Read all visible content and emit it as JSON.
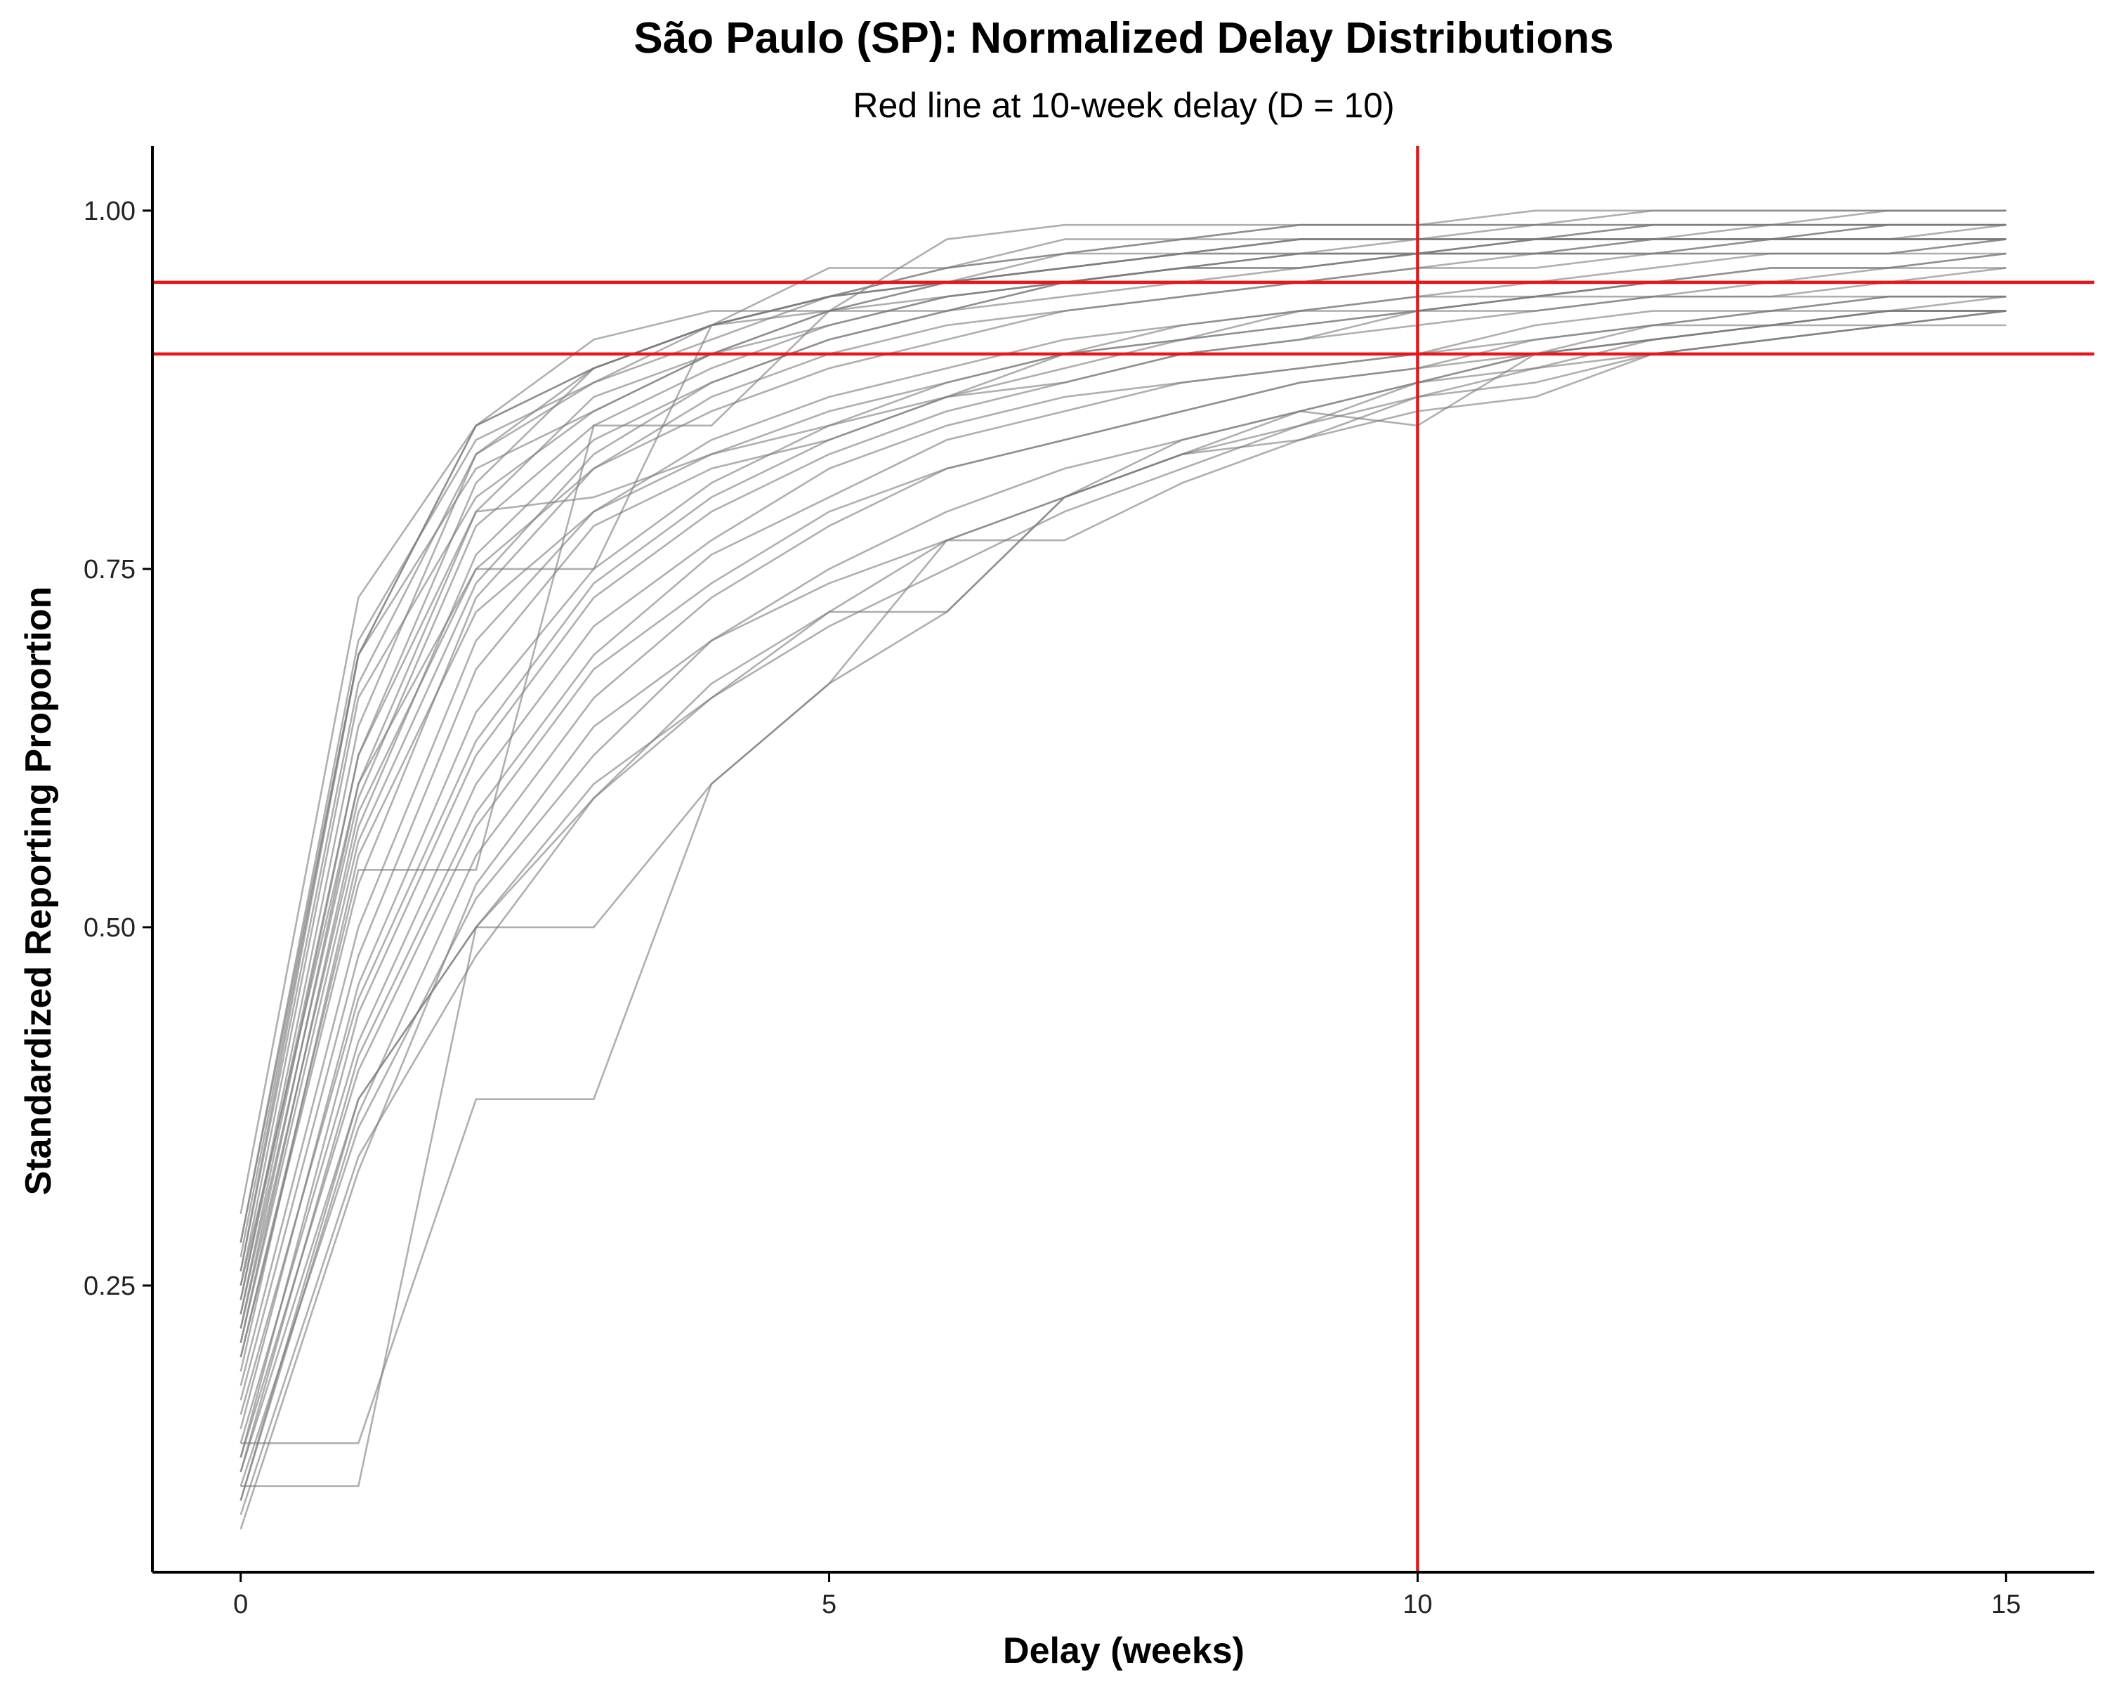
{
  "chart_data": {
    "type": "line",
    "title": "São Paulo (SP): Normalized Delay Distributions",
    "subtitle": "Red line at 10-week delay (D = 10)",
    "xlabel": "Delay (weeks)",
    "ylabel": "Standardized Reporting Proportion",
    "xlim": [
      -0.75,
      15.75
    ],
    "ylim": [
      0.05,
      1.045
    ],
    "x_ticks": [
      0,
      5,
      10,
      15
    ],
    "x_tick_labels": [
      "0",
      "5",
      "10",
      "15"
    ],
    "y_ticks": [
      0.25,
      0.5,
      0.75,
      1.0
    ],
    "y_tick_labels": [
      "0.25",
      "0.50",
      "0.75",
      "1.00"
    ],
    "grid": false,
    "legend": "none",
    "colors": {
      "series": "#7a7a7a",
      "reference": "#e8161b",
      "axis": "#000000"
    },
    "reference_lines": [
      {
        "axis": "x",
        "value": 10
      },
      {
        "axis": "y",
        "value": 0.95
      },
      {
        "axis": "y",
        "value": 0.9
      }
    ],
    "x": [
      0,
      1,
      2,
      3,
      4,
      5,
      6,
      7,
      8,
      9,
      10,
      11,
      12,
      13,
      14,
      15
    ],
    "series": [
      {
        "values": [
          0.27,
          0.69,
          0.85,
          0.89,
          0.92,
          0.94,
          0.96,
          0.97,
          0.98,
          0.98,
          0.98,
          0.98,
          0.99,
          0.99,
          0.99,
          0.99
        ]
      },
      {
        "values": [
          0.28,
          0.7,
          0.84,
          0.88,
          0.91,
          0.94,
          0.95,
          0.96,
          0.97,
          0.97,
          0.98,
          0.98,
          0.98,
          0.98,
          0.98,
          0.98
        ]
      },
      {
        "values": [
          0.26,
          0.69,
          0.82,
          0.86,
          0.9,
          0.93,
          0.95,
          0.96,
          0.97,
          0.97,
          0.97,
          0.97,
          0.97,
          0.97,
          0.97,
          0.97
        ]
      },
      {
        "values": [
          0.3,
          0.73,
          0.85,
          0.89,
          0.92,
          0.94,
          0.95,
          0.96,
          0.97,
          0.98,
          0.98,
          0.99,
          1.0,
          1.0,
          1.0,
          1.0
        ]
      },
      {
        "values": [
          0.25,
          0.66,
          0.8,
          0.86,
          0.9,
          0.92,
          0.94,
          0.95,
          0.96,
          0.96,
          0.97,
          0.97,
          0.97,
          0.98,
          0.98,
          0.98
        ]
      },
      {
        "values": [
          0.23,
          0.62,
          0.79,
          0.87,
          0.9,
          0.93,
          0.95,
          0.97,
          0.98,
          0.99,
          0.99,
          0.99,
          0.99,
          0.99,
          0.99,
          0.99
        ]
      },
      {
        "values": [
          0.24,
          0.64,
          0.83,
          0.88,
          0.92,
          0.96,
          0.96,
          0.98,
          0.98,
          0.99,
          0.99,
          1.0,
          1.0,
          1.0,
          1.0,
          1.0
        ]
      },
      {
        "values": [
          0.22,
          0.6,
          0.75,
          0.75,
          0.92,
          0.93,
          0.93,
          0.95,
          0.96,
          0.97,
          0.97,
          0.98,
          0.98,
          0.98,
          0.98,
          0.98
        ]
      },
      {
        "values": [
          0.2,
          0.54,
          0.54,
          0.85,
          0.85,
          0.93,
          0.98,
          0.99,
          0.99,
          0.99,
          0.99,
          0.99,
          0.99,
          0.99,
          0.99,
          0.99
        ]
      },
      {
        "values": [
          0.28,
          0.69,
          0.85,
          0.91,
          0.93,
          0.93,
          0.94,
          0.95,
          0.96,
          0.97,
          0.97,
          0.98,
          0.98,
          0.98,
          0.98,
          0.98
        ]
      },
      {
        "values": [
          0.24,
          0.62,
          0.81,
          0.89,
          0.92,
          0.94,
          0.95,
          0.96,
          0.97,
          0.98,
          0.98,
          0.98,
          0.98,
          0.99,
          0.99,
          0.99
        ]
      },
      {
        "values": [
          0.21,
          0.58,
          0.75,
          0.82,
          0.86,
          0.89,
          0.91,
          0.93,
          0.94,
          0.95,
          0.96,
          0.97,
          0.97,
          0.98,
          0.98,
          0.99
        ]
      },
      {
        "values": [
          0.19,
          0.55,
          0.72,
          0.79,
          0.83,
          0.86,
          0.88,
          0.9,
          0.91,
          0.92,
          0.93,
          0.93,
          0.94,
          0.95,
          0.95,
          0.96
        ]
      },
      {
        "values": [
          0.25,
          0.6,
          0.79,
          0.8,
          0.83,
          0.85,
          0.87,
          0.89,
          0.91,
          0.93,
          0.94,
          0.95,
          0.96,
          0.97,
          0.97,
          0.98
        ]
      },
      {
        "values": [
          0.17,
          0.48,
          0.68,
          0.78,
          0.82,
          0.84,
          0.87,
          0.88,
          0.9,
          0.91,
          0.93,
          0.94,
          0.95,
          0.96,
          0.96,
          0.97
        ]
      },
      {
        "values": [
          0.16,
          0.45,
          0.63,
          0.74,
          0.8,
          0.84,
          0.87,
          0.9,
          0.92,
          0.93,
          0.93,
          0.94,
          0.94,
          0.94,
          0.94,
          0.94
        ]
      },
      {
        "values": [
          0.14,
          0.42,
          0.6,
          0.71,
          0.77,
          0.82,
          0.85,
          0.87,
          0.88,
          0.89,
          0.9,
          0.91,
          0.92,
          0.93,
          0.94,
          0.94
        ]
      },
      {
        "values": [
          0.13,
          0.4,
          0.57,
          0.68,
          0.74,
          0.79,
          0.82,
          0.84,
          0.86,
          0.88,
          0.89,
          0.9,
          0.91,
          0.92,
          0.93,
          0.93
        ]
      },
      {
        "values": [
          0.1,
          0.38,
          0.5,
          0.59,
          0.66,
          0.72,
          0.77,
          0.8,
          0.83,
          0.86,
          0.88,
          0.9,
          0.91,
          0.92,
          0.92,
          0.93
        ]
      },
      {
        "values": [
          0.11,
          0.36,
          0.52,
          0.62,
          0.7,
          0.75,
          0.79,
          0.82,
          0.84,
          0.86,
          0.88,
          0.89,
          0.91,
          0.92,
          0.93,
          0.94
        ]
      },
      {
        "values": [
          0.12,
          0.38,
          0.5,
          0.6,
          0.66,
          0.71,
          0.75,
          0.79,
          0.82,
          0.85,
          0.88,
          0.9,
          0.91,
          0.92,
          0.93,
          0.93
        ]
      },
      {
        "values": [
          0.14,
          0.14,
          0.38,
          0.38,
          0.6,
          0.67,
          0.77,
          0.77,
          0.81,
          0.84,
          0.86,
          0.87,
          0.9,
          0.91,
          0.92,
          0.93
        ]
      },
      {
        "values": [
          0.11,
          0.11,
          0.5,
          0.5,
          0.6,
          0.67,
          0.72,
          0.8,
          0.83,
          0.84,
          0.87,
          0.88,
          0.9,
          0.91,
          0.92,
          0.93
        ]
      },
      {
        "values": [
          0.09,
          0.34,
          0.48,
          0.59,
          0.67,
          0.72,
          0.72,
          0.8,
          0.84,
          0.86,
          0.85,
          0.9,
          0.92,
          0.93,
          0.93,
          0.93
        ]
      },
      {
        "values": [
          0.08,
          0.33,
          0.53,
          0.64,
          0.7,
          0.74,
          0.77,
          0.8,
          0.83,
          0.85,
          0.87,
          0.89,
          0.9,
          0.91,
          0.92,
          0.92
        ]
      },
      {
        "values": [
          0.15,
          0.46,
          0.65,
          0.75,
          0.81,
          0.85,
          0.88,
          0.9,
          0.91,
          0.92,
          0.93,
          0.94,
          0.95,
          0.95,
          0.96,
          0.96
        ]
      },
      {
        "values": [
          0.18,
          0.5,
          0.7,
          0.79,
          0.84,
          0.87,
          0.89,
          0.91,
          0.92,
          0.93,
          0.94,
          0.94,
          0.95,
          0.96,
          0.96,
          0.97
        ]
      },
      {
        "values": [
          0.2,
          0.53,
          0.73,
          0.82,
          0.87,
          0.9,
          0.92,
          0.93,
          0.94,
          0.95,
          0.96,
          0.96,
          0.97,
          0.97,
          0.97,
          0.98
        ]
      },
      {
        "values": [
          0.22,
          0.57,
          0.76,
          0.84,
          0.88,
          0.91,
          0.93,
          0.94,
          0.95,
          0.96,
          0.97,
          0.97,
          0.98,
          0.98,
          0.98,
          0.98
        ]
      },
      {
        "values": [
          0.23,
          0.59,
          0.78,
          0.85,
          0.89,
          0.92,
          0.94,
          0.95,
          0.96,
          0.97,
          0.97,
          0.98,
          0.98,
          0.98,
          0.99,
          0.99
        ]
      },
      {
        "values": [
          0.13,
          0.44,
          0.62,
          0.73,
          0.79,
          0.83,
          0.86,
          0.88,
          0.9,
          0.91,
          0.92,
          0.93,
          0.94,
          0.94,
          0.95,
          0.95
        ]
      },
      {
        "values": [
          0.12,
          0.41,
          0.58,
          0.69,
          0.76,
          0.8,
          0.84,
          0.86,
          0.88,
          0.89,
          0.9,
          0.92,
          0.93,
          0.93,
          0.94,
          0.94
        ]
      },
      {
        "values": [
          0.1,
          0.37,
          0.55,
          0.66,
          0.73,
          0.78,
          0.82,
          0.84,
          0.86,
          0.88,
          0.89,
          0.91,
          0.92,
          0.92,
          0.93,
          0.93
        ]
      },
      {
        "values": [
          0.26,
          0.67,
          0.83,
          0.89,
          0.92,
          0.94,
          0.96,
          0.97,
          0.97,
          0.98,
          0.98,
          0.98,
          0.99,
          0.99,
          1.0,
          1.0
        ]
      },
      {
        "values": [
          0.21,
          0.56,
          0.74,
          0.83,
          0.88,
          0.91,
          0.93,
          0.95,
          0.96,
          0.96,
          0.97,
          0.97,
          0.98,
          0.98,
          0.99,
          0.99
        ]
      }
    ]
  }
}
